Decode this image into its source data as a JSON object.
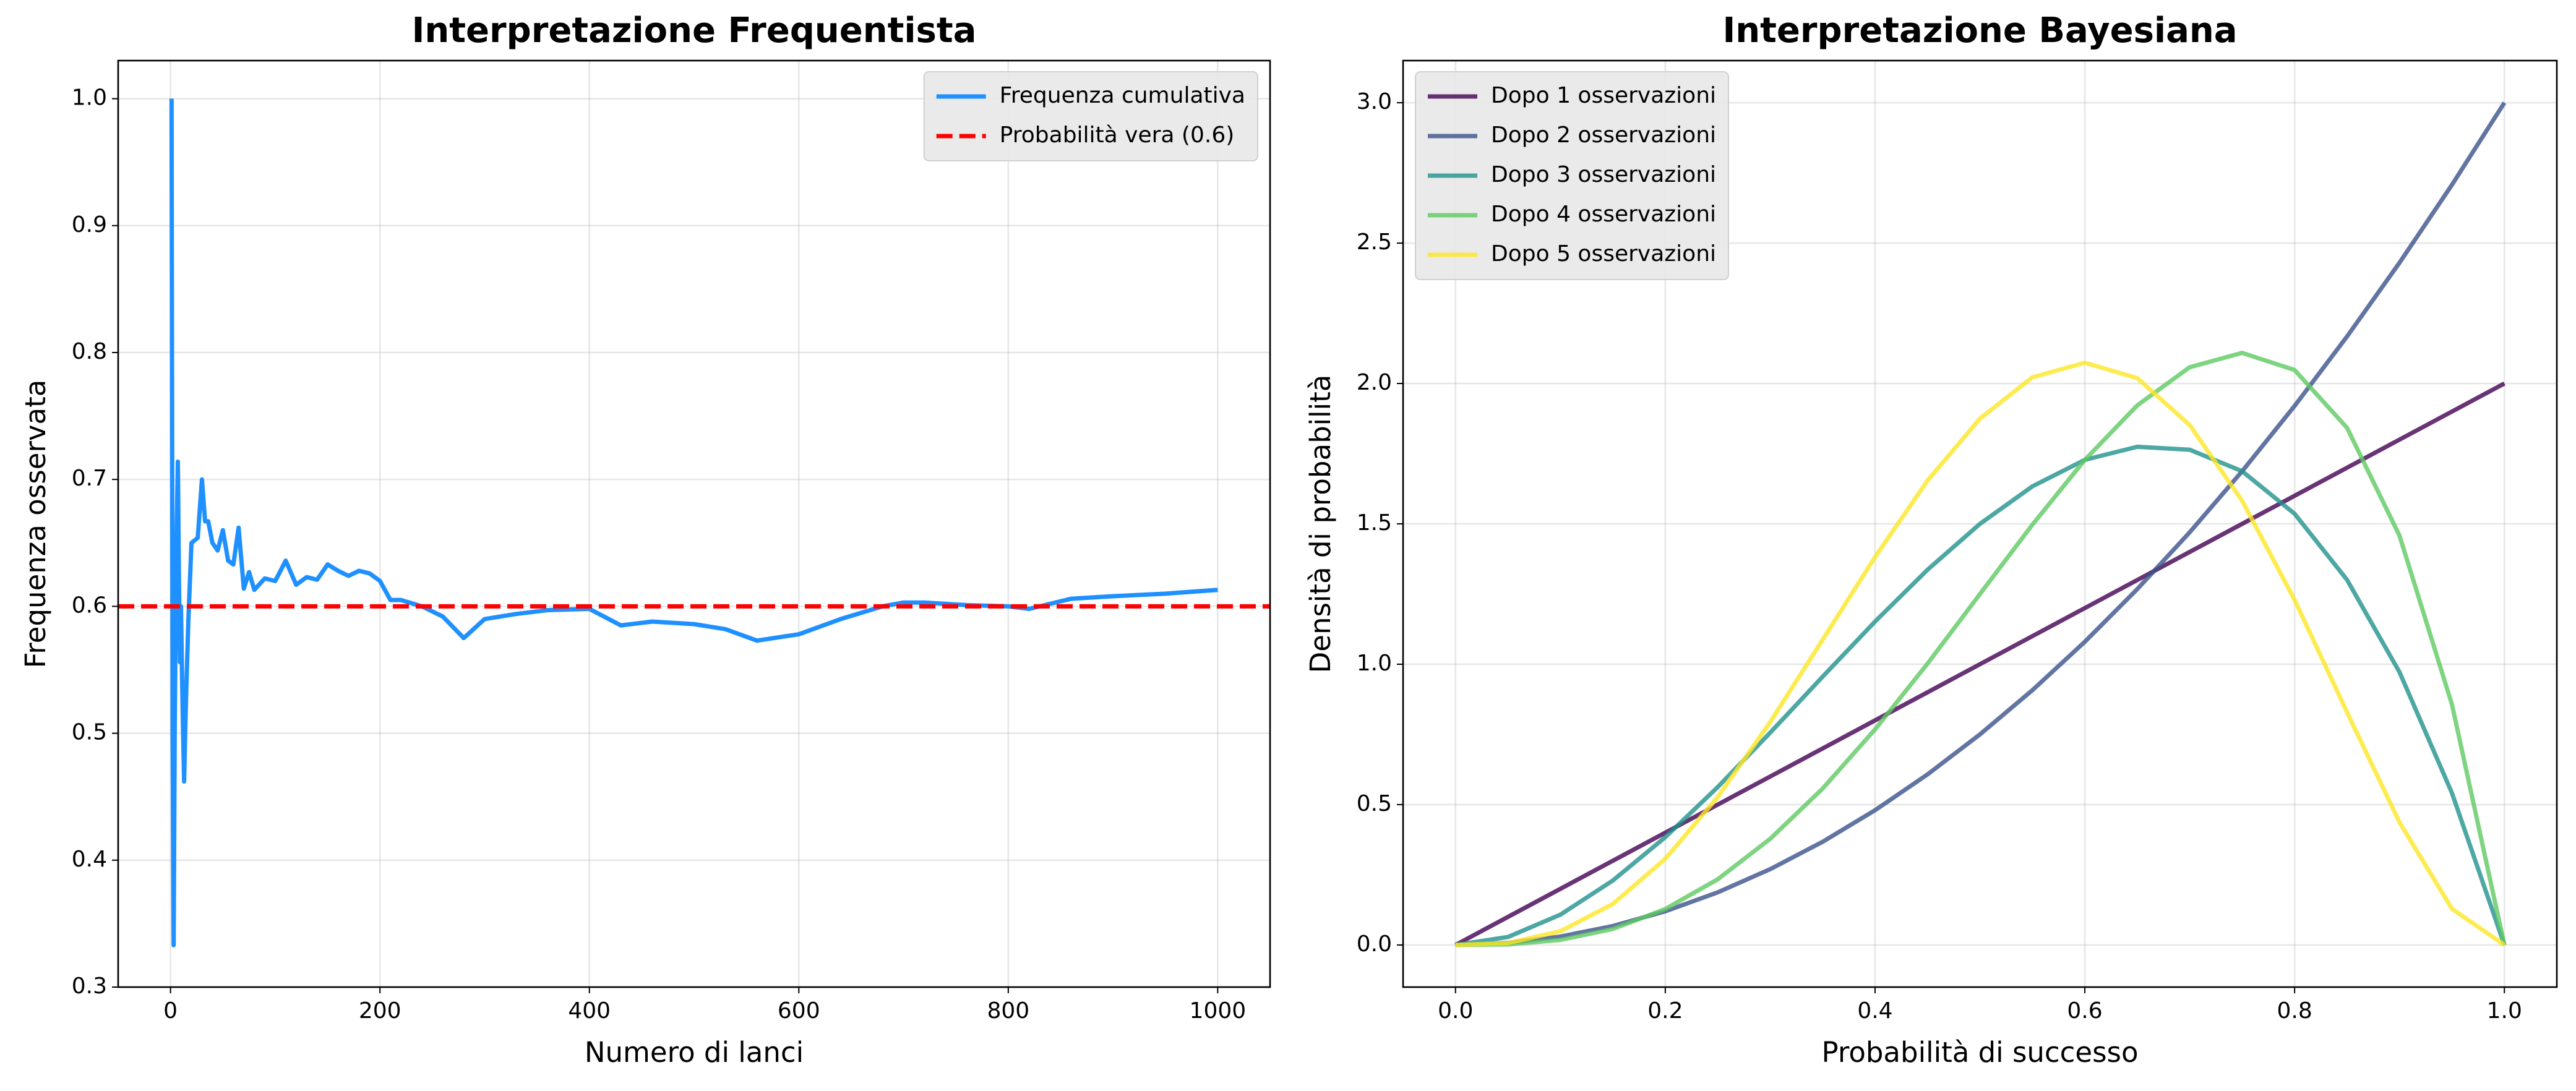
{
  "chart_data": [
    {
      "type": "line",
      "title": "Interpretazione Frequentista",
      "xlabel": "Numero di lanci",
      "ylabel": "Frequenza osservata",
      "x": [
        1,
        2,
        3,
        4,
        5,
        6,
        7,
        8,
        9,
        10,
        11,
        12,
        13,
        14,
        15,
        17,
        20,
        23,
        26,
        30,
        33,
        36,
        40,
        45,
        50,
        55,
        60,
        65,
        70,
        75,
        80,
        90,
        100,
        110,
        120,
        130,
        140,
        150,
        160,
        170,
        180,
        190,
        200,
        210,
        220,
        240,
        260,
        280,
        300,
        330,
        360,
        400,
        430,
        460,
        500,
        530,
        560,
        600,
        640,
        680,
        700,
        720,
        760,
        800,
        820,
        860,
        900,
        950,
        1000
      ],
      "series": [
        {
          "name": "Frequenza cumulativa",
          "color": "#1e90ff",
          "values": [
            1.0,
            0.5,
            0.333,
            0.5,
            0.6,
            0.667,
            0.714,
            0.625,
            0.556,
            0.6,
            0.545,
            0.5,
            0.462,
            0.5,
            0.533,
            0.588,
            0.65,
            0.652,
            0.654,
            0.7,
            0.667,
            0.667,
            0.65,
            0.644,
            0.66,
            0.636,
            0.633,
            0.662,
            0.614,
            0.627,
            0.613,
            0.622,
            0.62,
            0.636,
            0.617,
            0.623,
            0.621,
            0.633,
            0.628,
            0.624,
            0.628,
            0.626,
            0.62,
            0.605,
            0.605,
            0.6,
            0.592,
            0.575,
            0.59,
            0.594,
            0.597,
            0.598,
            0.585,
            0.588,
            0.586,
            0.582,
            0.573,
            0.578,
            0.59,
            0.6,
            0.603,
            0.603,
            0.601,
            0.6,
            0.598,
            0.606,
            0.608,
            0.61,
            0.613
          ]
        }
      ],
      "reference_lines": [
        {
          "name": "Probabilità vera (0.6)",
          "value": 0.6,
          "color": "#ff0000",
          "style": "dashed"
        }
      ],
      "xlim": [
        -50,
        1050
      ],
      "ylim": [
        0.3,
        1.03
      ],
      "xticks": [
        0,
        200,
        400,
        600,
        800,
        1000
      ],
      "yticks": [
        0.3,
        0.4,
        0.5,
        0.6,
        0.7,
        0.8,
        0.9,
        {
          "value": 1,
          "label": "1.0"
        }
      ],
      "grid": true,
      "legend": "upper-right"
    },
    {
      "type": "line",
      "title": "Interpretazione Bayesiana",
      "xlabel": "Probabilità di successo",
      "ylabel": "Densità di probabilità",
      "x": [
        0,
        0.05,
        0.1,
        0.15,
        0.2,
        0.25,
        0.3,
        0.35,
        0.4,
        0.45,
        0.5,
        0.55,
        0.6,
        0.65,
        0.7,
        0.75,
        0.8,
        0.85,
        0.9,
        0.95,
        1
      ],
      "series": [
        {
          "name": "Dopo 1 osservazioni",
          "color": "#440154",
          "values": [
            0,
            0.1,
            0.2,
            0.3,
            0.4,
            0.5,
            0.6,
            0.7,
            0.8,
            0.9,
            1,
            1.1,
            1.2,
            1.3,
            1.4,
            1.5,
            1.6,
            1.7,
            1.8,
            1.9,
            2
          ]
        },
        {
          "name": "Dopo 2 osservazioni",
          "color": "#3b528b",
          "values": [
            0,
            0.0075,
            0.03,
            0.0675,
            0.12,
            0.1875,
            0.27,
            0.3675,
            0.48,
            0.6075,
            0.75,
            0.9075,
            1.08,
            1.2675,
            1.47,
            1.6875,
            1.92,
            2.1675,
            2.43,
            2.7075,
            3
          ]
        },
        {
          "name": "Dopo 3 osservazioni",
          "color": "#21918c",
          "values": [
            0,
            0.0285,
            0.108,
            0.2295,
            0.384,
            0.5625,
            0.756,
            0.9555,
            1.152,
            1.3365,
            1.5,
            1.6335,
            1.728,
            1.7745,
            1.764,
            1.6875,
            1.536,
            1.3005,
            0.972,
            0.5415,
            0
          ]
        },
        {
          "name": "Dopo 4 osservazioni",
          "color": "#5ec962",
          "values": [
            0,
            0.002,
            0.018,
            0.057,
            0.128,
            0.234,
            0.378,
            0.557,
            0.768,
            1.002,
            1.25,
            1.497,
            1.728,
            1.922,
            2.058,
            2.109,
            2.048,
            1.842,
            1.458,
            0.857,
            0
          ]
        },
        {
          "name": "Dopo 5 osservazioni",
          "color": "#fde725",
          "values": [
            0,
            0.007,
            0.049,
            0.146,
            0.307,
            0.527,
            0.794,
            1.087,
            1.382,
            1.654,
            1.875,
            2.022,
            2.074,
            2.019,
            1.852,
            1.582,
            1.229,
            0.829,
            0.437,
            0.129,
            0
          ]
        }
      ],
      "xlim": [
        -0.05,
        1.05
      ],
      "ylim": [
        -0.15,
        3.15
      ],
      "xticks": [
        {
          "value": 0,
          "label": "0.0"
        },
        0.2,
        0.4,
        0.6,
        0.8,
        {
          "value": 1,
          "label": "1.0"
        }
      ],
      "yticks": [
        {
          "value": 0,
          "label": "0.0"
        },
        0.5,
        {
          "value": 1,
          "label": "1.0"
        },
        1.5,
        {
          "value": 2,
          "label": "2.0"
        },
        2.5,
        {
          "value": 3,
          "label": "3.0"
        }
      ],
      "grid": true,
      "legend": "upper-left",
      "alpha": 0.8
    }
  ]
}
